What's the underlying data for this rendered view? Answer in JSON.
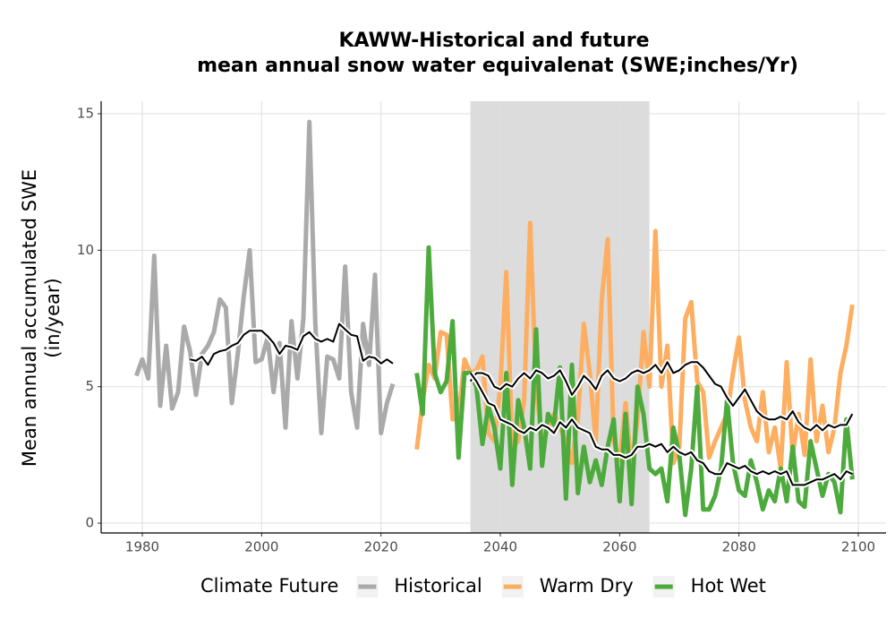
{
  "chart_data": {
    "type": "line",
    "title": [
      "KAWW-Historical and future",
      "mean annual snow water equivalenat (SWE;inches/Yr)"
    ],
    "ylabel": [
      "Mean annual accumulated SWE",
      "(in/year)"
    ],
    "legend_title": "Climate Future",
    "legend_position": "bottom",
    "grid": true,
    "xlim": [
      1973.1,
      2104.65
    ],
    "ylim": [
      -0.36,
      15.46
    ],
    "xticks": [
      1980,
      2000,
      2020,
      2040,
      2060,
      2080,
      2100
    ],
    "yticks": [
      0,
      5,
      10,
      15
    ],
    "shaded_x": [
      2035,
      2065
    ],
    "shaded_color": "#dcdcdc",
    "series": [
      {
        "name": "Historical",
        "color": "#aaaaaa",
        "x": [
          1979,
          1980,
          1981,
          1982,
          1983,
          1984,
          1985,
          1986,
          1987,
          1988,
          1989,
          1990,
          1991,
          1992,
          1993,
          1994,
          1995,
          1996,
          1997,
          1998,
          1999,
          2000,
          2001,
          2002,
          2003,
          2004,
          2005,
          2006,
          2007,
          2008,
          2009,
          2010,
          2011,
          2012,
          2013,
          2014,
          2015,
          2016,
          2017,
          2018,
          2019,
          2020,
          2021,
          2022
        ],
        "values": [
          5.4,
          6.0,
          5.3,
          9.8,
          4.3,
          6.5,
          4.2,
          4.8,
          7.2,
          6.3,
          4.7,
          6.2,
          6.5,
          7.0,
          8.2,
          7.9,
          4.4,
          6.2,
          8.3,
          10.0,
          5.9,
          6.0,
          6.8,
          4.8,
          6.6,
          3.5,
          7.4,
          5.3,
          7.5,
          14.7,
          7.3,
          3.3,
          6.1,
          6.0,
          5.3,
          9.4,
          4.8,
          3.5,
          7.3,
          5.8,
          9.1,
          3.3,
          4.4,
          5.1
        ]
      },
      {
        "name": "Warm Dry",
        "color": "#fdae61",
        "x": [
          2026,
          2027,
          2028,
          2029,
          2030,
          2031,
          2032,
          2033,
          2034,
          2035,
          2036,
          2037,
          2038,
          2039,
          2040,
          2041,
          2042,
          2043,
          2044,
          2045,
          2046,
          2047,
          2048,
          2049,
          2050,
          2051,
          2052,
          2053,
          2054,
          2055,
          2056,
          2057,
          2058,
          2059,
          2060,
          2061,
          2062,
          2063,
          2064,
          2065,
          2066,
          2067,
          2068,
          2069,
          2070,
          2071,
          2072,
          2073,
          2074,
          2075,
          2076,
          2077,
          2078,
          2079,
          2080,
          2081,
          2082,
          2083,
          2084,
          2085,
          2086,
          2087,
          2088,
          2089,
          2090,
          2091,
          2092,
          2093,
          2094,
          2095,
          2096,
          2097,
          2098,
          2099
        ],
        "values": [
          2.7,
          4.5,
          5.8,
          5.3,
          7.0,
          6.9,
          3.8,
          3.9,
          6.0,
          5.5,
          5.6,
          6.1,
          3.3,
          3.0,
          5.0,
          9.2,
          2.8,
          3.0,
          4.5,
          11.0,
          5.0,
          2.9,
          3.5,
          4.0,
          3.5,
          3.0,
          2.2,
          3.8,
          7.3,
          5.5,
          3.0,
          8.2,
          10.4,
          3.0,
          2.3,
          4.4,
          2.0,
          3.8,
          7.0,
          5.0,
          10.7,
          5.0,
          6.5,
          2.2,
          2.8,
          7.5,
          8.1,
          5.2,
          4.8,
          2.4,
          3.0,
          3.5,
          4.0,
          5.5,
          6.8,
          4.5,
          3.5,
          3.0,
          4.8,
          2.6,
          3.5,
          2.0,
          5.9,
          2.5,
          4.0,
          2.5,
          6.0,
          3.0,
          4.3,
          2.6,
          3.5,
          5.5,
          6.5,
          8.0
        ]
      },
      {
        "name": "Hot Wet",
        "color": "#4daa3c",
        "x": [
          2026,
          2027,
          2028,
          2029,
          2030,
          2031,
          2032,
          2033,
          2034,
          2035,
          2036,
          2037,
          2038,
          2039,
          2040,
          2041,
          2042,
          2043,
          2044,
          2045,
          2046,
          2047,
          2048,
          2049,
          2050,
          2051,
          2052,
          2053,
          2054,
          2055,
          2056,
          2057,
          2058,
          2059,
          2060,
          2061,
          2062,
          2063,
          2064,
          2065,
          2066,
          2067,
          2068,
          2069,
          2070,
          2071,
          2072,
          2073,
          2074,
          2075,
          2076,
          2077,
          2078,
          2079,
          2080,
          2081,
          2082,
          2083,
          2084,
          2085,
          2086,
          2087,
          2088,
          2089,
          2090,
          2091,
          2092,
          2093,
          2094,
          2095,
          2096,
          2097,
          2098,
          2099
        ],
        "values": [
          5.5,
          4.0,
          10.1,
          5.5,
          4.8,
          5.2,
          7.4,
          2.4,
          5.5,
          5.5,
          5.0,
          2.9,
          4.3,
          3.5,
          2.0,
          5.5,
          1.4,
          4.5,
          3.5,
          2.0,
          7.1,
          2.1,
          4.0,
          3.6,
          5.7,
          0.9,
          5.8,
          1.1,
          2.8,
          1.5,
          2.3,
          1.4,
          2.8,
          3.8,
          0.8,
          4.0,
          0.7,
          5.0,
          4.0,
          2.0,
          1.8,
          2.0,
          0.8,
          3.5,
          2.5,
          0.3,
          2.0,
          5.0,
          0.5,
          0.5,
          1.0,
          2.0,
          4.5,
          2.2,
          1.2,
          1.0,
          2.3,
          1.5,
          0.5,
          1.2,
          0.8,
          2.0,
          0.8,
          2.8,
          0.8,
          0.6,
          3.0,
          2.0,
          1.0,
          1.8,
          1.5,
          0.4,
          3.8,
          1.6
        ]
      }
    ],
    "smooth": [
      {
        "color": "#000000",
        "x": [
          1988,
          1989,
          1990,
          1991,
          1992,
          1993,
          1994,
          1995,
          1996,
          1997,
          1998,
          1999,
          2000,
          2001,
          2002,
          2003,
          2004,
          2005,
          2006,
          2007,
          2008,
          2009,
          2010,
          2011,
          2012,
          2013,
          2014,
          2015,
          2016,
          2017,
          2018,
          2019,
          2020,
          2021,
          2022
        ],
        "values": [
          6.0,
          5.95,
          6.1,
          5.8,
          6.2,
          6.3,
          6.35,
          6.5,
          6.6,
          6.9,
          7.05,
          7.05,
          7.05,
          6.85,
          6.6,
          6.2,
          6.5,
          6.45,
          6.35,
          6.85,
          7.0,
          6.75,
          6.65,
          6.75,
          6.65,
          7.3,
          7.1,
          6.9,
          6.85,
          5.95,
          6.1,
          6.05,
          5.85,
          6.0,
          5.85
        ]
      },
      {
        "color": "#000000",
        "x": [
          2035,
          2036,
          2037,
          2038,
          2039,
          2040,
          2041,
          2042,
          2043,
          2044,
          2045,
          2046,
          2047,
          2048,
          2049,
          2050,
          2051,
          2052,
          2053,
          2054,
          2055,
          2056,
          2057,
          2058,
          2059,
          2060,
          2061,
          2062,
          2063,
          2064,
          2065,
          2066,
          2067,
          2068,
          2069,
          2070,
          2071,
          2072,
          2073,
          2074,
          2075,
          2076,
          2077,
          2078,
          2079,
          2080,
          2081,
          2082,
          2083,
          2084,
          2085,
          2086,
          2087,
          2088,
          2089,
          2090,
          2091,
          2092,
          2093,
          2094,
          2095,
          2096,
          2097,
          2098,
          2099
        ],
        "values": [
          5.2,
          5.5,
          5.5,
          5.4,
          5.0,
          4.9,
          5.1,
          5.0,
          5.3,
          5.5,
          5.3,
          5.6,
          5.5,
          5.3,
          5.4,
          5.6,
          5.2,
          4.7,
          5.0,
          5.4,
          5.2,
          4.9,
          5.4,
          5.6,
          5.3,
          5.2,
          5.3,
          5.5,
          5.6,
          5.5,
          5.6,
          5.8,
          5.5,
          5.9,
          5.5,
          5.6,
          5.8,
          5.9,
          5.9,
          5.7,
          5.4,
          5.1,
          5.0,
          4.6,
          4.3,
          4.6,
          4.9,
          4.5,
          4.1,
          3.9,
          3.8,
          3.8,
          3.9,
          3.8,
          4.1,
          3.7,
          3.5,
          3.4,
          3.6,
          3.4,
          3.6,
          3.5,
          3.6,
          3.6,
          4.0
        ]
      },
      {
        "color": "#000000",
        "x": [
          2035,
          2036,
          2037,
          2038,
          2039,
          2040,
          2041,
          2042,
          2043,
          2044,
          2045,
          2046,
          2047,
          2048,
          2049,
          2050,
          2051,
          2052,
          2053,
          2054,
          2055,
          2056,
          2057,
          2058,
          2059,
          2060,
          2061,
          2062,
          2063,
          2064,
          2065,
          2066,
          2067,
          2068,
          2069,
          2070,
          2071,
          2072,
          2073,
          2074,
          2075,
          2076,
          2077,
          2078,
          2079,
          2080,
          2081,
          2082,
          2083,
          2084,
          2085,
          2086,
          2087,
          2088,
          2089,
          2090,
          2091,
          2092,
          2093,
          2094,
          2095,
          2096,
          2097,
          2098,
          2099
        ],
        "values": [
          5.5,
          5.2,
          4.8,
          4.4,
          4.3,
          3.8,
          3.7,
          3.6,
          3.4,
          3.3,
          3.5,
          3.4,
          3.6,
          3.5,
          3.3,
          3.7,
          3.5,
          3.8,
          3.5,
          3.4,
          3.3,
          2.8,
          2.7,
          2.7,
          2.5,
          2.5,
          2.4,
          2.5,
          2.8,
          2.8,
          2.9,
          2.8,
          2.9,
          2.6,
          2.8,
          2.6,
          2.5,
          2.6,
          2.3,
          2.2,
          1.9,
          1.8,
          1.8,
          2.2,
          2.1,
          2.0,
          2.1,
          1.9,
          1.8,
          1.9,
          1.8,
          1.9,
          1.8,
          1.9,
          1.4,
          1.4,
          1.4,
          1.5,
          1.6,
          1.6,
          1.7,
          1.8,
          1.6,
          1.9,
          1.8
        ]
      }
    ]
  }
}
